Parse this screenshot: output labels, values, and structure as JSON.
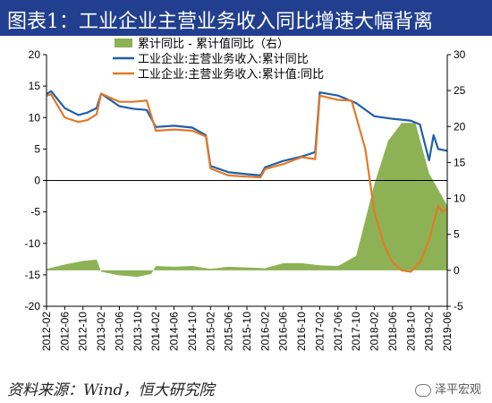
{
  "title": "图表1：工业企业主营业务收入同比增速大幅背离",
  "footer": "资料来源：Wind，恒大研究院",
  "watermark": "泽平宏观",
  "chart_data": {
    "type": "line",
    "title": "图表1：工业企业主营业务收入同比增速大幅背离",
    "left_axis": {
      "ylim": [
        -20,
        20
      ],
      "ticks": [
        -20,
        -15,
        -10,
        -5,
        0,
        5,
        10,
        15,
        20
      ]
    },
    "right_axis": {
      "ylim": [
        -5,
        30
      ],
      "ticks": [
        -5,
        0,
        5,
        10,
        15,
        20,
        25,
        30
      ]
    },
    "x_tick_labels": [
      "2012-02",
      "2012-06",
      "2012-10",
      "2013-02",
      "2013-06",
      "2013-10",
      "2014-02",
      "2014-06",
      "2014-10",
      "2015-02",
      "2015-06",
      "2015-10",
      "2016-02",
      "2016-06",
      "2016-10",
      "2017-02",
      "2017-06",
      "2017-10",
      "2018-02",
      "2018-06",
      "2018-10",
      "2019-02",
      "2019-06"
    ],
    "legend_position": "top",
    "grid": false,
    "series": [
      {
        "name": "累计同比 - 累计值同比（右）",
        "type": "area",
        "axis": "right",
        "color": "#8db255",
        "points": [
          [
            "2012-02",
            0.2
          ],
          [
            "2012-06",
            0.8
          ],
          [
            "2012-10",
            1.3
          ],
          [
            "2013-01",
            1.5
          ],
          [
            "2013-02",
            -0.2
          ],
          [
            "2013-06",
            -0.7
          ],
          [
            "2013-10",
            -0.9
          ],
          [
            "2014-01",
            -0.5
          ],
          [
            "2014-02",
            0.6
          ],
          [
            "2014-06",
            0.5
          ],
          [
            "2014-10",
            0.6
          ],
          [
            "2015-02",
            0.2
          ],
          [
            "2015-06",
            0.5
          ],
          [
            "2015-10",
            0.4
          ],
          [
            "2016-02",
            0.3
          ],
          [
            "2016-06",
            1.0
          ],
          [
            "2016-10",
            1.0
          ],
          [
            "2017-02",
            0.7
          ],
          [
            "2017-06",
            0.6
          ],
          [
            "2017-10",
            2.0
          ],
          [
            "2018-02",
            12.0
          ],
          [
            "2018-05",
            18.0
          ],
          [
            "2018-08",
            20.5
          ],
          [
            "2018-11",
            20.5
          ],
          [
            "2019-02",
            13.5
          ],
          [
            "2019-06",
            9.0
          ]
        ]
      },
      {
        "name": "工业企业:主营业务收入:累计同比",
        "type": "line",
        "axis": "left",
        "color": "#1f5faa",
        "points": [
          [
            "2012-02",
            13.7
          ],
          [
            "2012-03",
            14.2
          ],
          [
            "2012-06",
            11.5
          ],
          [
            "2012-09",
            10.4
          ],
          [
            "2012-11",
            10.8
          ],
          [
            "2013-01",
            11.5
          ],
          [
            "2013-02",
            13.8
          ],
          [
            "2013-06",
            11.8
          ],
          [
            "2013-09",
            11.4
          ],
          [
            "2013-12",
            11.2
          ],
          [
            "2014-02",
            8.5
          ],
          [
            "2014-06",
            8.7
          ],
          [
            "2014-10",
            8.4
          ],
          [
            "2015-01",
            7.2
          ],
          [
            "2015-02",
            2.3
          ],
          [
            "2015-06",
            1.3
          ],
          [
            "2015-10",
            1.0
          ],
          [
            "2016-01",
            0.8
          ],
          [
            "2016-02",
            2.1
          ],
          [
            "2016-06",
            3.1
          ],
          [
            "2016-10",
            3.8
          ],
          [
            "2017-01",
            4.5
          ],
          [
            "2017-02",
            14.0
          ],
          [
            "2017-06",
            13.5
          ],
          [
            "2017-10",
            12.3
          ],
          [
            "2018-02",
            10.2
          ],
          [
            "2018-06",
            9.8
          ],
          [
            "2018-10",
            9.5
          ],
          [
            "2018-12",
            8.9
          ],
          [
            "2019-02",
            3.2
          ],
          [
            "2019-03",
            7.2
          ],
          [
            "2019-04",
            5.0
          ],
          [
            "2019-06",
            4.7
          ]
        ]
      },
      {
        "name": "工业企业:主营业务收入:累计值:同比",
        "type": "line",
        "axis": "left",
        "color": "#e17a27",
        "points": [
          [
            "2012-02",
            13.5
          ],
          [
            "2012-03",
            13.7
          ],
          [
            "2012-06",
            10.0
          ],
          [
            "2012-09",
            9.3
          ],
          [
            "2012-11",
            9.6
          ],
          [
            "2013-01",
            10.5
          ],
          [
            "2013-02",
            13.8
          ],
          [
            "2013-06",
            12.5
          ],
          [
            "2013-09",
            12.5
          ],
          [
            "2013-12",
            12.7
          ],
          [
            "2014-02",
            7.9
          ],
          [
            "2014-06",
            8.1
          ],
          [
            "2014-10",
            7.9
          ],
          [
            "2015-01",
            7.0
          ],
          [
            "2015-02",
            1.9
          ],
          [
            "2015-06",
            0.8
          ],
          [
            "2015-10",
            0.6
          ],
          [
            "2016-01",
            0.5
          ],
          [
            "2016-02",
            1.8
          ],
          [
            "2016-06",
            2.6
          ],
          [
            "2016-10",
            3.7
          ],
          [
            "2017-01",
            3.4
          ],
          [
            "2017-02",
            13.5
          ],
          [
            "2017-06",
            12.8
          ],
          [
            "2017-09",
            12.7
          ],
          [
            "2017-12",
            5.0
          ],
          [
            "2018-02",
            -5.0
          ],
          [
            "2018-04",
            -10.0
          ],
          [
            "2018-06",
            -13.0
          ],
          [
            "2018-08",
            -14.3
          ],
          [
            "2018-10",
            -14.5
          ],
          [
            "2018-12",
            -13.0
          ],
          [
            "2019-02",
            -9.5
          ],
          [
            "2019-04",
            -4.0
          ],
          [
            "2019-05",
            -5.0
          ],
          [
            "2019-06",
            -4.5
          ]
        ]
      }
    ]
  }
}
